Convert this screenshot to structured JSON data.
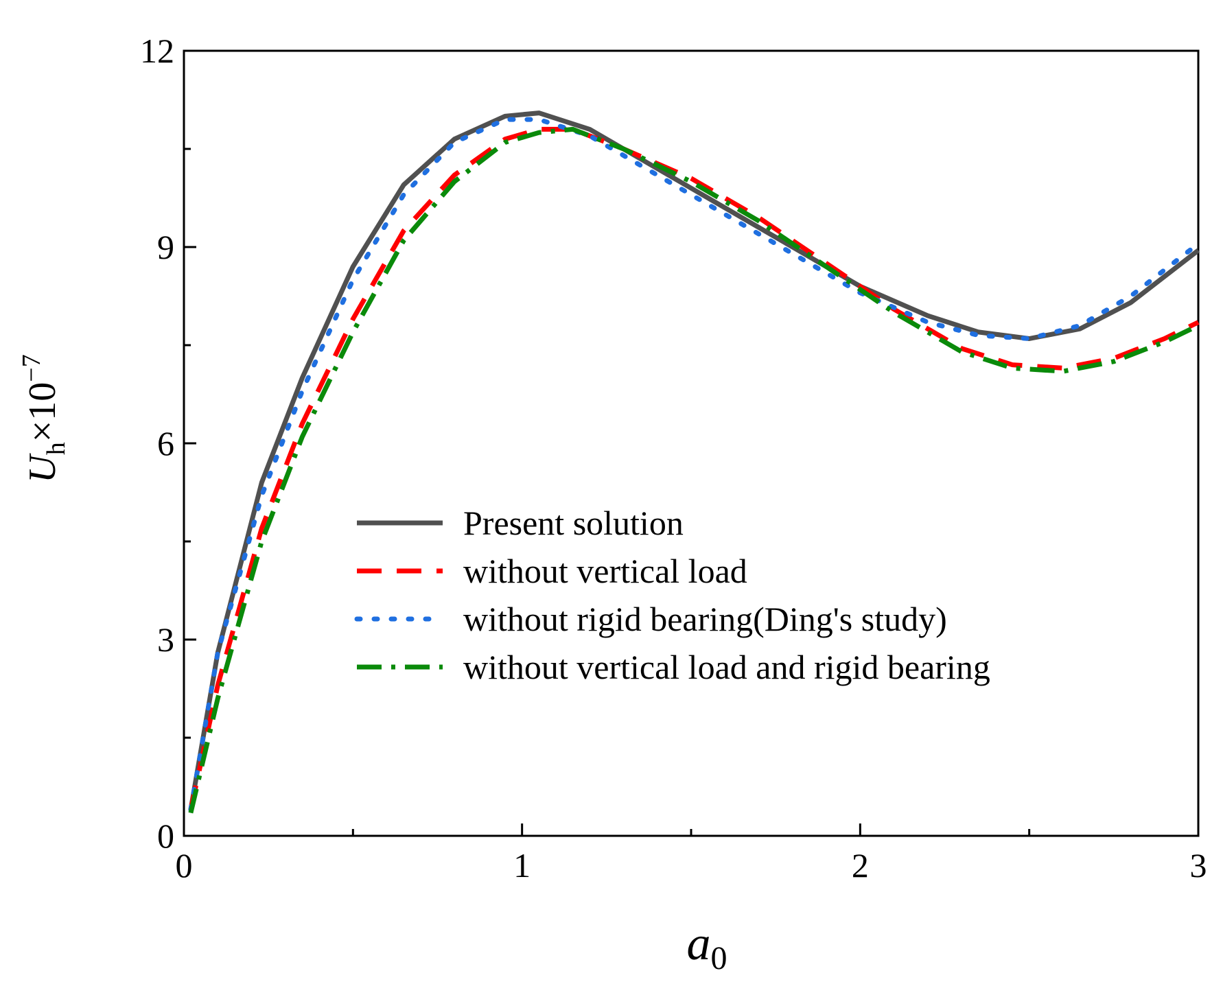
{
  "chart_data": {
    "type": "line",
    "title": "",
    "xlabel": {
      "main": "a",
      "sub": "0"
    },
    "ylabel": {
      "main": "U",
      "sub": "h",
      "mult": "×10",
      "sup": "−7"
    },
    "xlim": [
      0,
      3
    ],
    "ylim": [
      0,
      12
    ],
    "x_ticks": [
      0,
      1,
      2,
      3
    ],
    "x_tick_labels": [
      "0",
      "1",
      "2",
      "3"
    ],
    "x_minor_ticks": [
      0.5,
      1.5,
      2.5
    ],
    "y_ticks": [
      0,
      3,
      6,
      9,
      12
    ],
    "y_tick_labels": [
      "0",
      "3",
      "6",
      "9",
      "12"
    ],
    "y_minor_ticks": [
      1.5,
      4.5,
      7.5,
      10.5
    ],
    "grid": false,
    "legend_position": "center-right",
    "series": [
      {
        "name": "Present solution",
        "color": "#505050",
        "style": "solid",
        "x": [
          0.02,
          0.1,
          0.23,
          0.35,
          0.5,
          0.65,
          0.8,
          0.95,
          1.05,
          1.2,
          1.4,
          1.6,
          1.8,
          2.0,
          2.2,
          2.35,
          2.5,
          2.65,
          2.8,
          3.0
        ],
        "y": [
          0.4,
          2.8,
          5.4,
          7.0,
          8.7,
          9.95,
          10.65,
          11.0,
          11.05,
          10.8,
          10.2,
          9.6,
          9.0,
          8.4,
          7.95,
          7.7,
          7.6,
          7.75,
          8.15,
          8.95
        ]
      },
      {
        "name": "without vertical load",
        "color": "#ff0000",
        "style": "dashed",
        "x": [
          0.02,
          0.1,
          0.23,
          0.35,
          0.5,
          0.65,
          0.8,
          0.95,
          1.05,
          1.15,
          1.3,
          1.5,
          1.7,
          1.9,
          2.1,
          2.3,
          2.45,
          2.6,
          2.75,
          2.9,
          3.0
        ],
        "y": [
          0.4,
          2.3,
          4.7,
          6.3,
          7.9,
          9.25,
          10.1,
          10.65,
          10.8,
          10.8,
          10.5,
          10.05,
          9.45,
          8.75,
          8.05,
          7.45,
          7.2,
          7.15,
          7.3,
          7.6,
          7.85
        ]
      },
      {
        "name": "without rigid bearing(Ding's study)",
        "color": "#1f6fe0",
        "style": "dotted",
        "x": [
          0.02,
          0.1,
          0.23,
          0.35,
          0.5,
          0.65,
          0.8,
          0.95,
          1.05,
          1.2,
          1.4,
          1.6,
          1.8,
          2.0,
          2.2,
          2.35,
          2.5,
          2.65,
          2.8,
          3.0
        ],
        "y": [
          0.4,
          2.8,
          5.2,
          6.8,
          8.5,
          9.8,
          10.6,
          10.95,
          10.95,
          10.7,
          10.1,
          9.5,
          8.9,
          8.3,
          7.85,
          7.65,
          7.6,
          7.8,
          8.25,
          9.05
        ]
      },
      {
        "name": "without vertical load and rigid bearing",
        "color": "#0a8a0a",
        "style": "dashdot",
        "x": [
          0.02,
          0.1,
          0.23,
          0.35,
          0.5,
          0.65,
          0.8,
          0.95,
          1.05,
          1.15,
          1.3,
          1.5,
          1.7,
          1.9,
          2.1,
          2.3,
          2.45,
          2.6,
          2.75,
          2.9,
          3.0
        ],
        "y": [
          0.35,
          2.1,
          4.5,
          6.1,
          7.7,
          9.1,
          10.0,
          10.6,
          10.75,
          10.8,
          10.5,
          10.0,
          9.4,
          8.7,
          8.0,
          7.4,
          7.15,
          7.1,
          7.25,
          7.55,
          7.8
        ]
      }
    ]
  }
}
